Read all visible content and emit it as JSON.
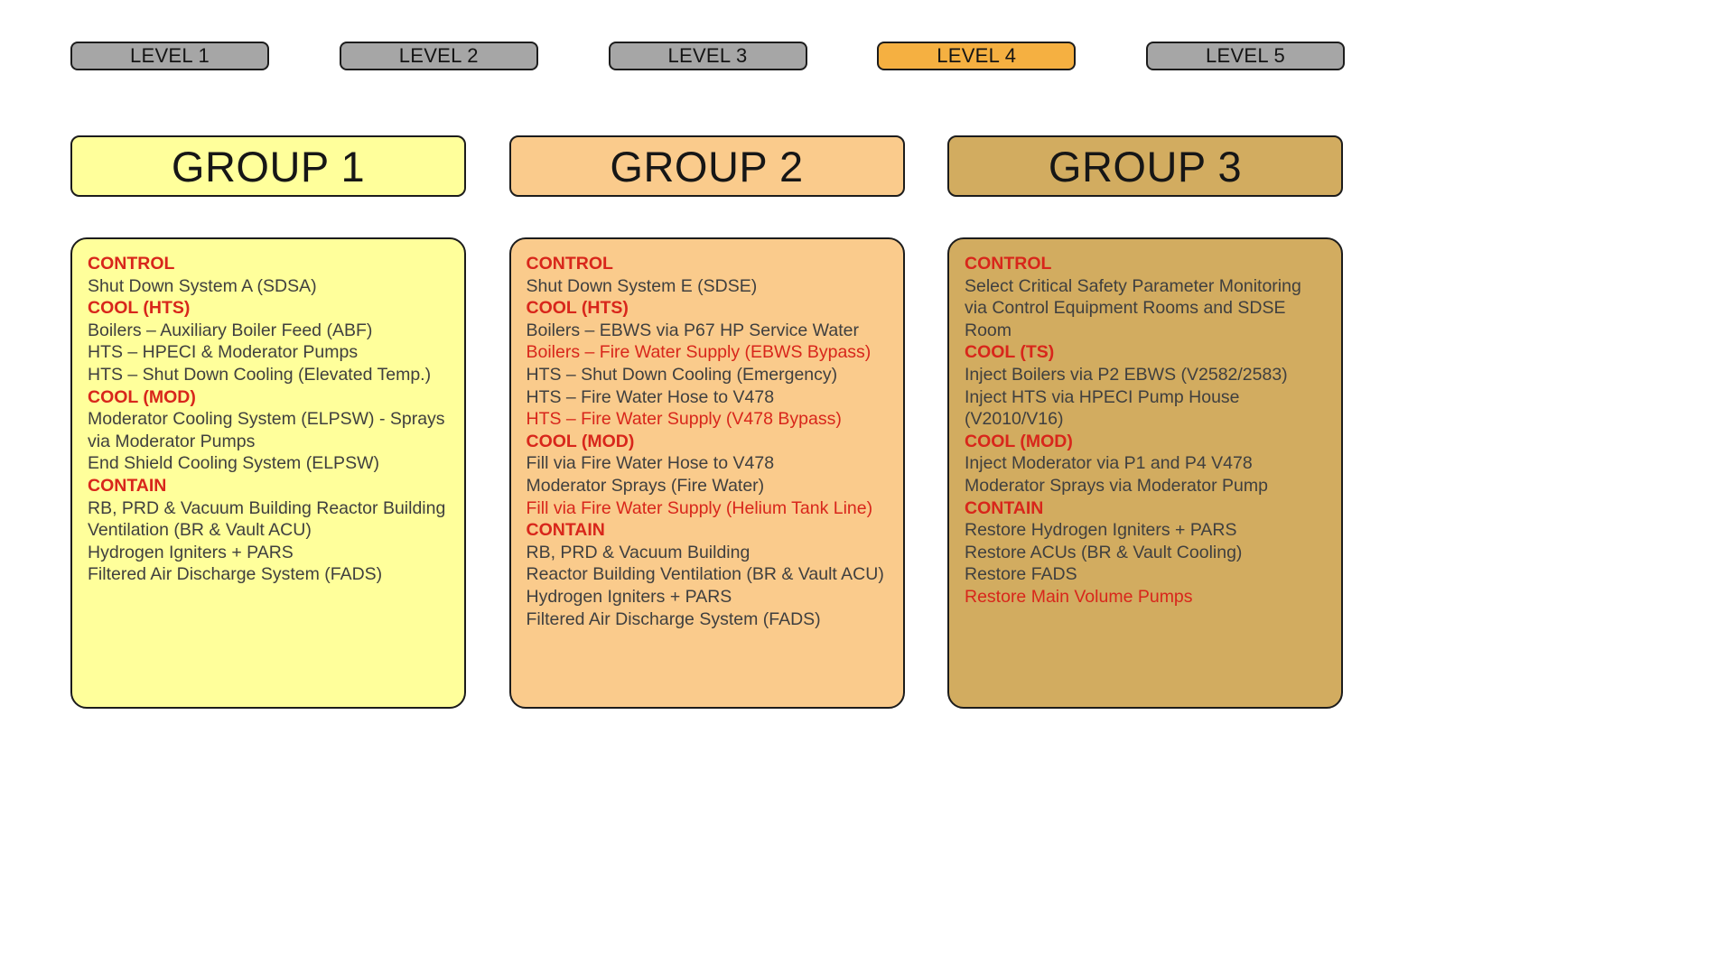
{
  "palette": {
    "level_inactive_bg": "#A6A6A6",
    "level_active_bg": "#F5B041",
    "group1_bg": "#FFFF9B",
    "group2_bg": "#FACB8C",
    "group3_bg": "#D2AC60",
    "border": "#1C1C1C",
    "body_text": "#3F3F3F",
    "alert_text": "#D8261B"
  },
  "levels": [
    {
      "label": "LEVEL 1",
      "state": "inactive"
    },
    {
      "label": "LEVEL 2",
      "state": "inactive"
    },
    {
      "label": "LEVEL 3",
      "state": "inactive"
    },
    {
      "label": "LEVEL 4",
      "state": "active"
    },
    {
      "label": "LEVEL 5",
      "state": "inactive"
    }
  ],
  "groups": [
    {
      "title": "GROUP 1",
      "items": [
        {
          "text": "CONTROL",
          "style": "header"
        },
        {
          "text": "Shut Down System A (SDSA)",
          "style": "body"
        },
        {
          "text": "COOL (HTS)",
          "style": "header"
        },
        {
          "text": "Boilers – Auxiliary Boiler Feed (ABF)",
          "style": "body"
        },
        {
          "text": "HTS – HPECI & Moderator Pumps",
          "style": "body"
        },
        {
          "text": "HTS – Shut Down Cooling (Elevated Temp.)",
          "style": "body"
        },
        {
          "text": "COOL (MOD)",
          "style": "header"
        },
        {
          "text": "Moderator Cooling System (ELPSW) - Sprays via Moderator Pumps",
          "style": "body"
        },
        {
          "text": "End Shield Cooling System (ELPSW)",
          "style": "body"
        },
        {
          "text": "CONTAIN",
          "style": "header"
        },
        {
          "text": "RB, PRD & Vacuum Building Reactor Building Ventilation (BR & Vault ACU)",
          "style": "body"
        },
        {
          "text": "Hydrogen Igniters + PARS",
          "style": "body"
        },
        {
          "text": "Filtered Air Discharge System (FADS)",
          "style": "body"
        }
      ]
    },
    {
      "title": "GROUP 2",
      "items": [
        {
          "text": "CONTROL",
          "style": "header"
        },
        {
          "text": "Shut Down System E (SDSE)",
          "style": "body"
        },
        {
          "text": "COOL (HTS)",
          "style": "header"
        },
        {
          "text": "Boilers – EBWS via P67 HP Service Water",
          "style": "body"
        },
        {
          "text": "Boilers – Fire Water Supply (EBWS Bypass)",
          "style": "alert"
        },
        {
          "text": "HTS – Shut Down Cooling (Emergency)",
          "style": "body"
        },
        {
          "text": "HTS – Fire Water Hose to V478",
          "style": "body"
        },
        {
          "text": "HTS – Fire Water Supply (V478 Bypass)",
          "style": "alert"
        },
        {
          "text": "COOL (MOD)",
          "style": "header"
        },
        {
          "text": "Fill via Fire Water Hose to V478",
          "style": "body"
        },
        {
          "text": "Moderator Sprays (Fire Water)",
          "style": "body"
        },
        {
          "text": "Fill via Fire Water Supply (Helium Tank Line)",
          "style": "alert"
        },
        {
          "text": "CONTAIN",
          "style": "header"
        },
        {
          "text": "RB, PRD & Vacuum Building",
          "style": "body"
        },
        {
          "text": "Reactor Building Ventilation (BR & Vault ACU)",
          "style": "body"
        },
        {
          "text": "Hydrogen Igniters + PARS",
          "style": "body"
        },
        {
          "text": "Filtered Air Discharge System (FADS)",
          "style": "body"
        }
      ]
    },
    {
      "title": "GROUP 3",
      "items": [
        {
          "text": "CONTROL",
          "style": "header"
        },
        {
          "text": "Select Critical Safety Parameter Monitoring via Control Equipment Rooms and SDSE Room",
          "style": "body"
        },
        {
          "text": "COOL (TS)",
          "style": "header"
        },
        {
          "text": "Inject Boilers via P2 EBWS (V2582/2583)",
          "style": "body"
        },
        {
          "text": "Inject HTS via HPECI Pump House (V2010/V16)",
          "style": "body"
        },
        {
          "text": "COOL (MOD)",
          "style": "header"
        },
        {
          "text": "Inject Moderator via P1 and P4 V478",
          "style": "body"
        },
        {
          "text": "Moderator Sprays via Moderator Pump",
          "style": "body"
        },
        {
          "text": "CONTAIN",
          "style": "header"
        },
        {
          "text": "Restore Hydrogen Igniters + PARS",
          "style": "body"
        },
        {
          "text": "Restore ACUs (BR & Vault Cooling)",
          "style": "body"
        },
        {
          "text": "Restore FADS",
          "style": "body"
        },
        {
          "text": "Restore Main Volume Pumps",
          "style": "alert"
        }
      ]
    }
  ]
}
